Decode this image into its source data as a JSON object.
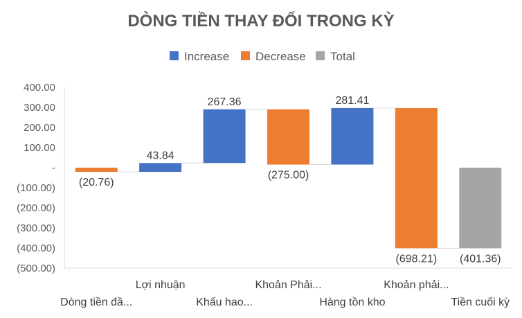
{
  "chart_data": {
    "type": "waterfall",
    "title": "DÒNG TIỀN THAY ĐỔI TRONG KỲ",
    "legend": [
      "Increase",
      "Decrease",
      "Total"
    ],
    "legend_position": "top",
    "colors": {
      "Increase": "#4472C4",
      "Decrease": "#ED7D31",
      "Total": "#A5A5A5"
    },
    "ylim": [
      -500,
      400
    ],
    "y_ticks": [
      "400.00",
      "300.00",
      "200.00",
      "100.00",
      "-",
      "(100.00)",
      "(200.00)",
      "(300.00)",
      "(400.00)",
      "(500.00)"
    ],
    "categories": [
      "Dòng tiền đầ...",
      "Lợi nhuận",
      "Khấu hao...",
      "Khoản Phải...",
      "Hàng tồn kho",
      "Khoản phải...",
      "Tiền cuối kỳ"
    ],
    "values": [
      -20.76,
      43.84,
      267.36,
      -275.0,
      281.41,
      -698.21,
      -401.36
    ],
    "kinds": [
      "Decrease",
      "Increase",
      "Increase",
      "Decrease",
      "Increase",
      "Decrease",
      "Total"
    ],
    "data_labels": [
      "(20.76)",
      "43.84",
      "267.36",
      "(275.00)",
      "281.41",
      "(698.21)",
      "(401.36)"
    ],
    "gridlines": false
  }
}
